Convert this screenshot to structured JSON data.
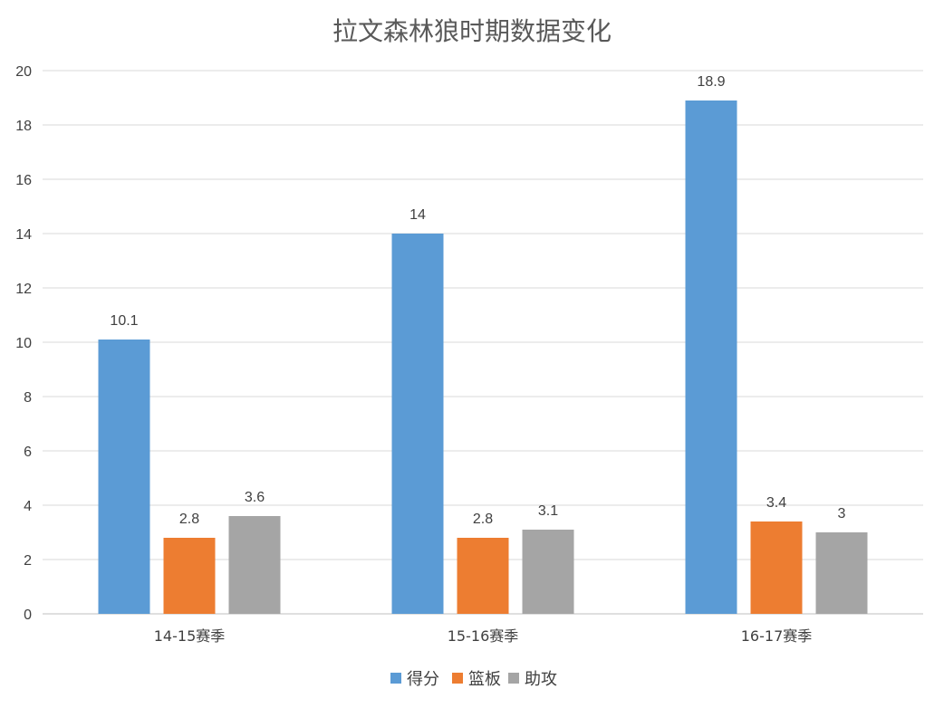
{
  "chart_data": {
    "type": "bar",
    "title": "拉文森林狼时期数据变化",
    "xlabel": "",
    "ylabel": "",
    "categories": [
      "14-15赛季",
      "15-16赛季",
      "16-17赛季"
    ],
    "series": [
      {
        "name": "得分",
        "color": "#5b9bd5",
        "values": [
          10.1,
          14,
          18.9
        ],
        "labels": [
          "10.1",
          "14",
          "18.9"
        ]
      },
      {
        "name": "篮板",
        "color": "#ed7d31",
        "values": [
          2.8,
          2.8,
          3.4
        ],
        "labels": [
          "2.8",
          "2.8",
          "3.4"
        ]
      },
      {
        "name": "助攻",
        "color": "#a5a5a5",
        "values": [
          3.6,
          3.1,
          3
        ],
        "labels": [
          "3.6",
          "3.1",
          "3"
        ]
      }
    ],
    "ylim": [
      0,
      20
    ],
    "yticks": [
      "0",
      "2",
      "4",
      "6",
      "8",
      "10",
      "12",
      "14",
      "16",
      "18",
      "20"
    ],
    "grid": true,
    "legend_position": "bottom"
  }
}
